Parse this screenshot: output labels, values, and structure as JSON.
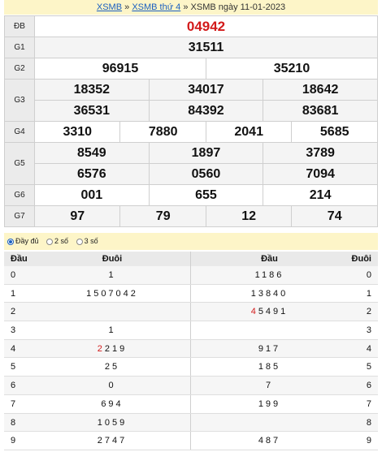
{
  "breadcrumb": {
    "link1": "XSMB",
    "sep1": "»",
    "link2": "XSMB thứ 4",
    "sep2": "»",
    "current": "XSMB ngày 11-01-2023"
  },
  "results": {
    "db": {
      "label": "ĐB",
      "value": "04942"
    },
    "g1": {
      "label": "G1",
      "values": [
        "31511"
      ]
    },
    "g2": {
      "label": "G2",
      "values": [
        "96915",
        "35210"
      ]
    },
    "g3": {
      "label": "G3",
      "values": [
        "18352",
        "34017",
        "18642",
        "36531",
        "84392",
        "83681"
      ]
    },
    "g4": {
      "label": "G4",
      "values": [
        "3310",
        "7880",
        "2041",
        "5685"
      ]
    },
    "g5": {
      "label": "G5",
      "values": [
        "8549",
        "1897",
        "3789",
        "6576",
        "0560",
        "7094"
      ]
    },
    "g6": {
      "label": "G6",
      "values": [
        "001",
        "655",
        "214"
      ]
    },
    "g7": {
      "label": "G7",
      "values": [
        "97",
        "79",
        "12",
        "74"
      ]
    }
  },
  "filter": {
    "opt1": "Đầy đủ",
    "opt2": "2 số",
    "opt3": "3 số",
    "selected": "Đầy đủ"
  },
  "loto": {
    "headers": {
      "dau": "Đầu",
      "duoi": "Đuôi",
      "dau2": "Đầu",
      "duoi2": "Đuôi"
    },
    "rows": [
      {
        "dau": "0",
        "duoi": "1",
        "dau2_hl": "",
        "dau2": "1186",
        "duoi2": "0"
      },
      {
        "dau": "1",
        "duoi": "1507042",
        "dau2_hl": "",
        "dau2": "13840",
        "duoi2": "1"
      },
      {
        "dau": "2",
        "duoi": "",
        "dau2_hl": "4",
        "dau2": "5491",
        "duoi2": "2"
      },
      {
        "dau": "3",
        "duoi": "1",
        "dau2_hl": "",
        "dau2": "",
        "duoi2": "3"
      },
      {
        "dau": "4",
        "duoi_hl": "2",
        "duoi": "219",
        "dau2_hl": "",
        "dau2": "917",
        "duoi2": "4"
      },
      {
        "dau": "5",
        "duoi": "25",
        "dau2_hl": "",
        "dau2": "185",
        "duoi2": "5"
      },
      {
        "dau": "6",
        "duoi": "0",
        "dau2_hl": "",
        "dau2": "7",
        "duoi2": "6"
      },
      {
        "dau": "7",
        "duoi": "694",
        "dau2_hl": "",
        "dau2": "199",
        "duoi2": "7"
      },
      {
        "dau": "8",
        "duoi": "1059",
        "dau2_hl": "",
        "dau2": "",
        "duoi2": "8"
      },
      {
        "dau": "9",
        "duoi": "2747",
        "dau2_hl": "",
        "dau2": "487",
        "duoi2": "9"
      }
    ]
  }
}
